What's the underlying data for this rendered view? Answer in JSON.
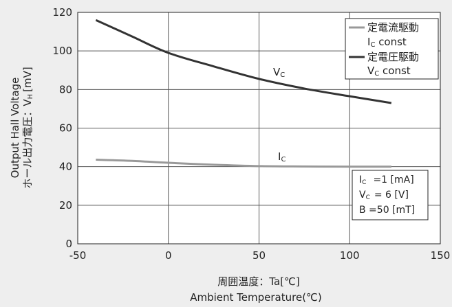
{
  "chart_data": {
    "type": "line",
    "x_ticks": [
      "-50",
      "0",
      "50",
      "100",
      "150"
    ],
    "y_ticks": [
      "0",
      "20",
      "40",
      "60",
      "80",
      "100",
      "120"
    ],
    "xlim": [
      -50,
      150
    ],
    "ylim": [
      0,
      120
    ],
    "grid": true,
    "legend_position": "top-right",
    "xlabel_jp": "周囲温度：Ta[℃]",
    "xlabel_en": "Ambient Temperature(℃)",
    "ylabel_en": "Output Hall Voltage",
    "ylabel_jp": "ホール出力電圧：V",
    "ylabel_jp_sub": "H",
    "ylabel_unit": "[mV]",
    "series": [
      {
        "name": "定電流駆動",
        "name2": "I",
        "name2_sub": "C",
        "name2_rest": " const",
        "color": "#999999",
        "label": "I",
        "label_sub": "C",
        "x": [
          -40,
          -20,
          0,
          25,
          50,
          75,
          100,
          123
        ],
        "y": [
          43.6,
          43,
          42,
          41,
          40.3,
          40.1,
          40,
          40
        ]
      },
      {
        "name": "定電圧駆動",
        "name2": "V",
        "name2_sub": "C",
        "name2_rest": " const",
        "color": "#333333",
        "label": "V",
        "label_sub": "C",
        "x": [
          -40,
          -20,
          0,
          25,
          50,
          75,
          100,
          123
        ],
        "y": [
          116,
          107.5,
          99,
          92,
          85.5,
          80.5,
          76.5,
          73
        ]
      }
    ],
    "conditions": [
      {
        "sym": "I",
        "sub": "C",
        "text": "=1 [mA]"
      },
      {
        "sym": "V",
        "sub": "C",
        "text": "= 6  [V]"
      },
      {
        "sym": "B",
        "sub": "",
        "text": " =50 [mT]"
      }
    ]
  }
}
